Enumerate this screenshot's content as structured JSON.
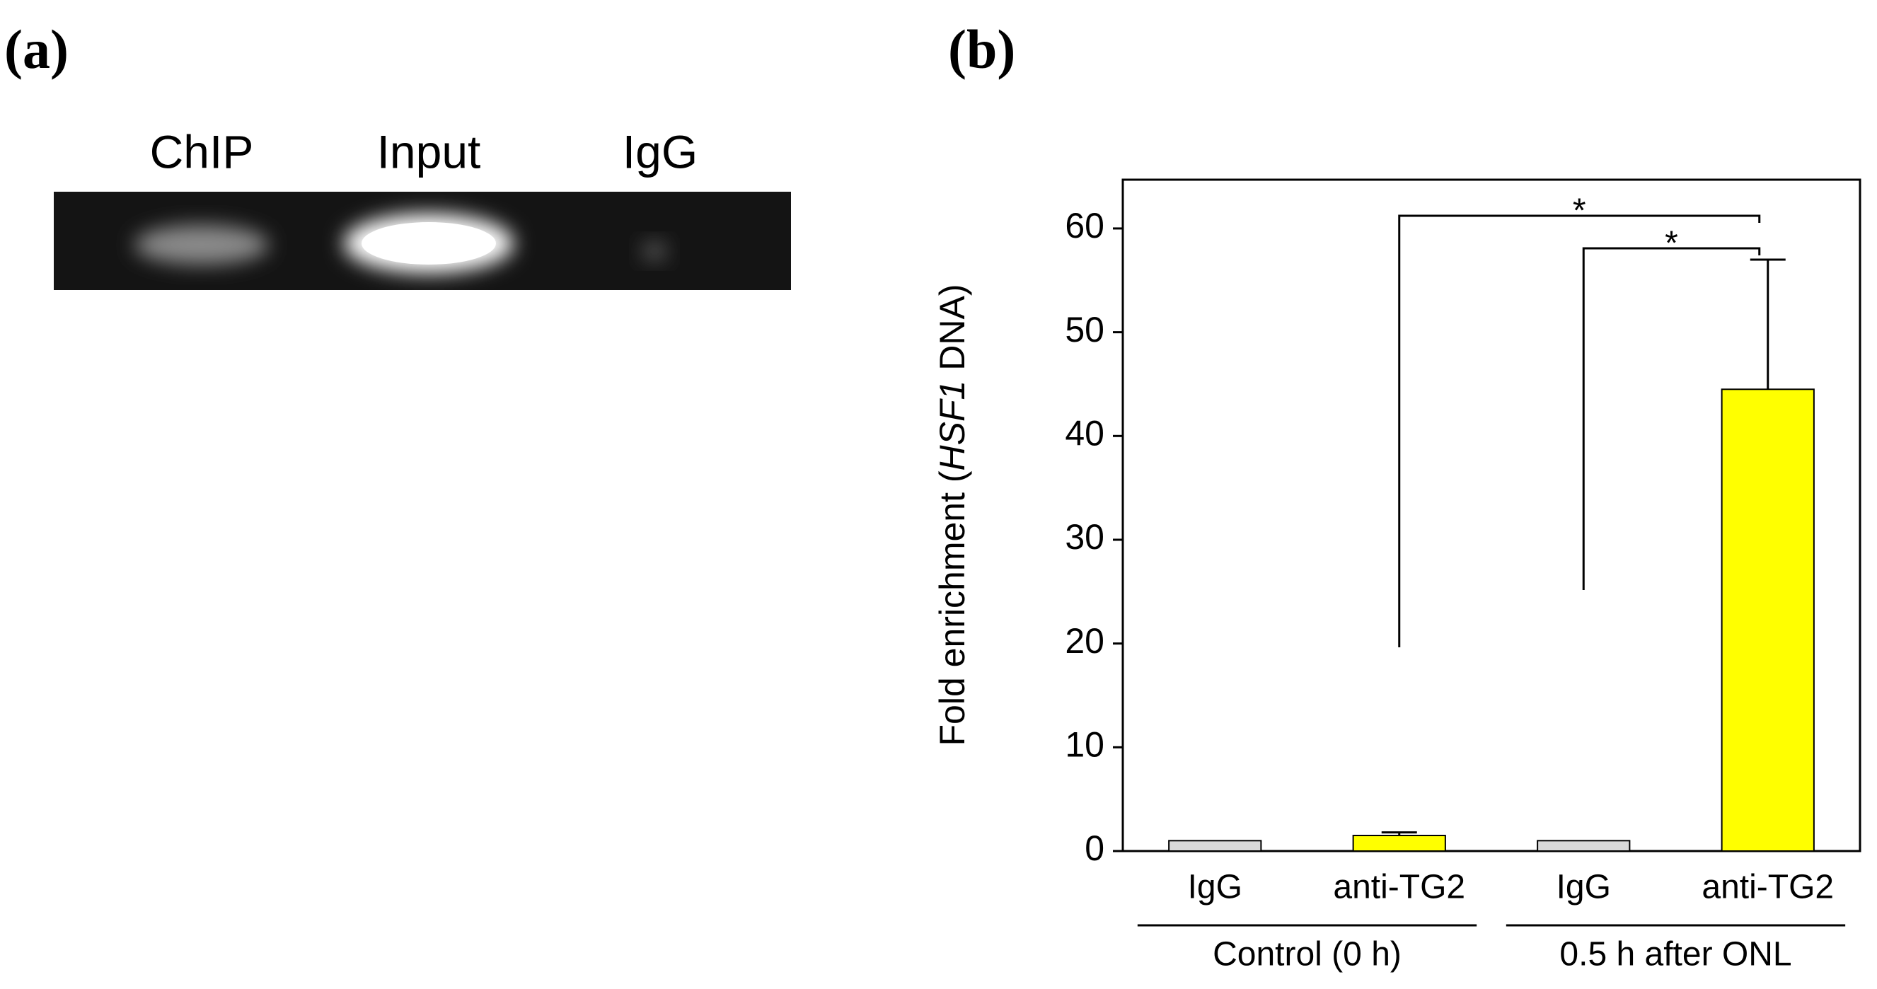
{
  "panel_a": {
    "label": "(a)",
    "lanes": [
      "ChIP",
      "Input",
      "IgG"
    ]
  },
  "chart_data": {
    "type": "bar",
    "panel_label": "(b)",
    "y_label_parts": [
      "Fold enrichment (",
      "HSF1",
      " DNA)"
    ],
    "categories": [
      "IgG",
      "anti-TG2",
      "IgG",
      "anti-TG2"
    ],
    "groups": [
      {
        "label": "Control (0 h)",
        "members": [
          0,
          1
        ]
      },
      {
        "label": "0.5 h after ONL",
        "members": [
          2,
          3
        ]
      }
    ],
    "values": [
      1,
      1.5,
      1,
      44.5
    ],
    "errors": [
      0,
      0.3,
      0,
      12.5
    ],
    "colors": [
      "#d9d9d9",
      "#ffff00",
      "#d9d9d9",
      "#ffff00"
    ],
    "ylim": [
      0,
      64.7
    ],
    "yticks": [
      0,
      10,
      20,
      30,
      40,
      50,
      60
    ],
    "annotations": [
      {
        "label": "*",
        "from": 1,
        "to": 3
      },
      {
        "label": "*",
        "from": 2,
        "to": 3
      }
    ]
  }
}
